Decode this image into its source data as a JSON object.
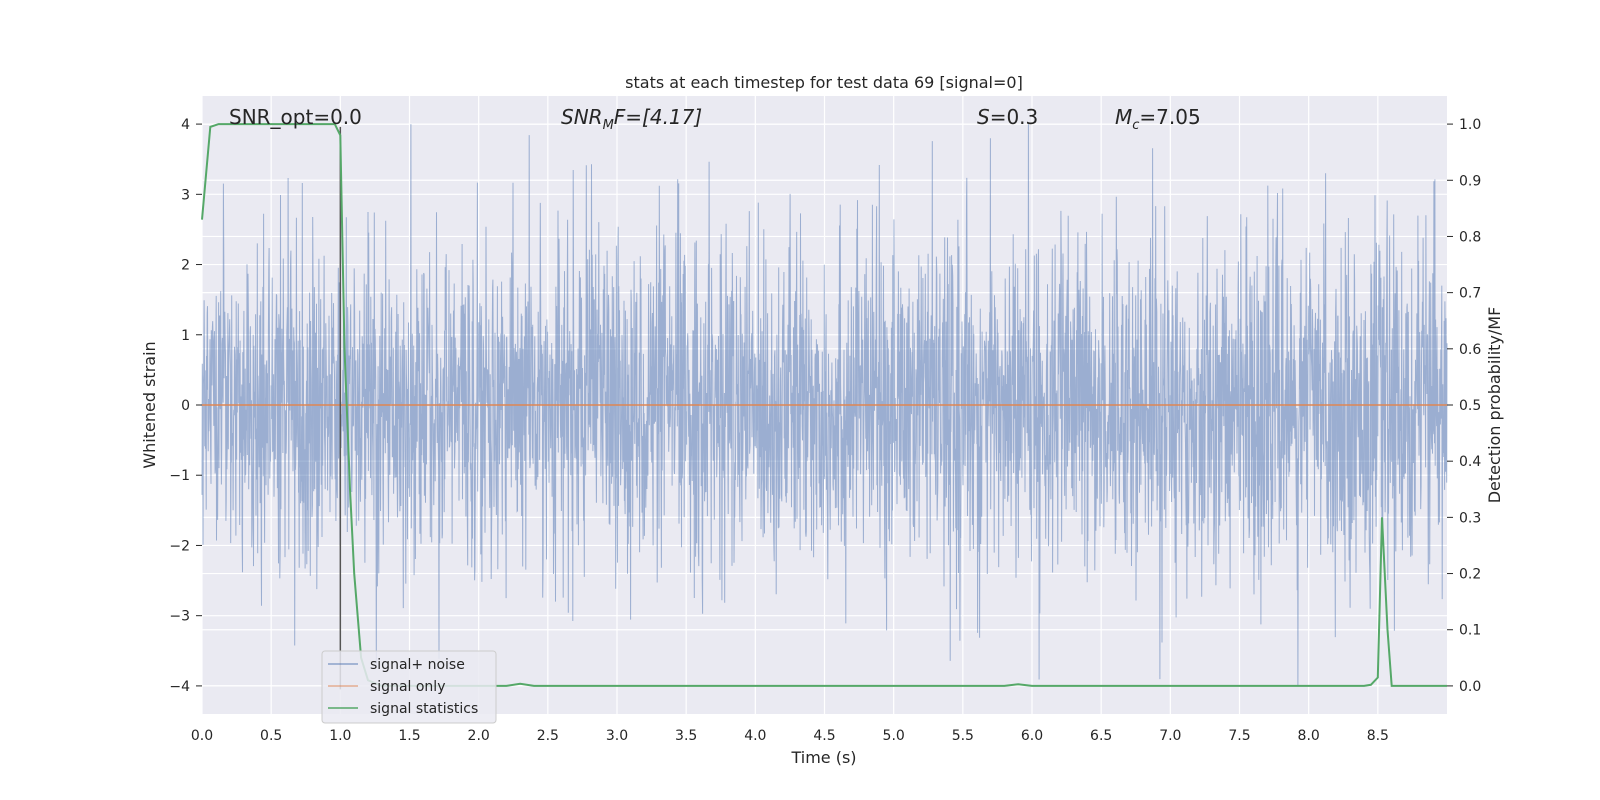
{
  "chart_data": {
    "type": "line",
    "title": "stats at each timestep for test data 69 [signal=0]",
    "xlabel": "Time (s)",
    "ylabel": "Whitened strain",
    "y2label": "Detection probability/MF",
    "xlim": [
      0.0,
      9.0
    ],
    "ylim": [
      -4.4,
      4.4
    ],
    "y2lim": [
      -0.05,
      1.05
    ],
    "xticks": [
      "0.0",
      "0.5",
      "1.0",
      "1.5",
      "2.0",
      "2.5",
      "3.0",
      "3.5",
      "4.0",
      "4.5",
      "5.0",
      "5.5",
      "6.0",
      "6.5",
      "7.0",
      "7.5",
      "8.0",
      "8.5"
    ],
    "yticks": [
      "−4",
      "−3",
      "−2",
      "−1",
      "0",
      "1",
      "2",
      "3",
      "4"
    ],
    "y2ticks": [
      "0.0",
      "0.1",
      "0.2",
      "0.3",
      "0.4",
      "0.5",
      "0.6",
      "0.7",
      "0.8",
      "0.9",
      "1.0"
    ],
    "grid": true,
    "legend_position": "lower-left",
    "colors": {
      "background": "#eaeaf2",
      "grid": "#ffffff",
      "signal_noise": "#4c72b0",
      "signal_only": "#dd8452",
      "signal_statistics": "#55a868",
      "marker_line": "#555555"
    },
    "annotations": {
      "snr_opt": "SNR_opt=0.0",
      "snr_mf_name": "SNR",
      "snr_mf_sub": "M",
      "snr_mf_rest": "F=[4.17]",
      "s_name": "S",
      "s_rest": "=0.3",
      "mc_name": "M",
      "mc_sub": "c",
      "mc_rest": "=7.05"
    },
    "vertical_marker_x": 1.0,
    "series": [
      {
        "name": "signal+ noise",
        "kind": "noise",
        "amplitude_envelope": [
          -4.0,
          4.0
        ]
      },
      {
        "name": "signal only",
        "kind": "flat",
        "values": [
          0.0
        ]
      },
      {
        "name": "signal statistics",
        "axis": "right",
        "x": [
          0.0,
          0.06,
          0.12,
          0.3,
          0.6,
          0.9,
          0.96,
          1.0,
          1.03,
          1.07,
          1.1,
          1.15,
          1.2,
          1.3,
          2.2,
          2.3,
          2.4,
          3.0,
          5.8,
          5.9,
          6.0,
          8.4,
          8.45,
          8.5,
          8.53,
          8.57,
          8.6,
          8.63,
          9.0
        ],
        "values": [
          0.83,
          0.995,
          1.0,
          1.0,
          1.0,
          1.0,
          1.0,
          0.98,
          0.6,
          0.35,
          0.2,
          0.05,
          0.01,
          0.0,
          0.0,
          0.004,
          0.0,
          0.0,
          0.0,
          0.003,
          0.0,
          0.0,
          0.002,
          0.015,
          0.3,
          0.1,
          0.0,
          0.0,
          0.0
        ]
      }
    ]
  }
}
